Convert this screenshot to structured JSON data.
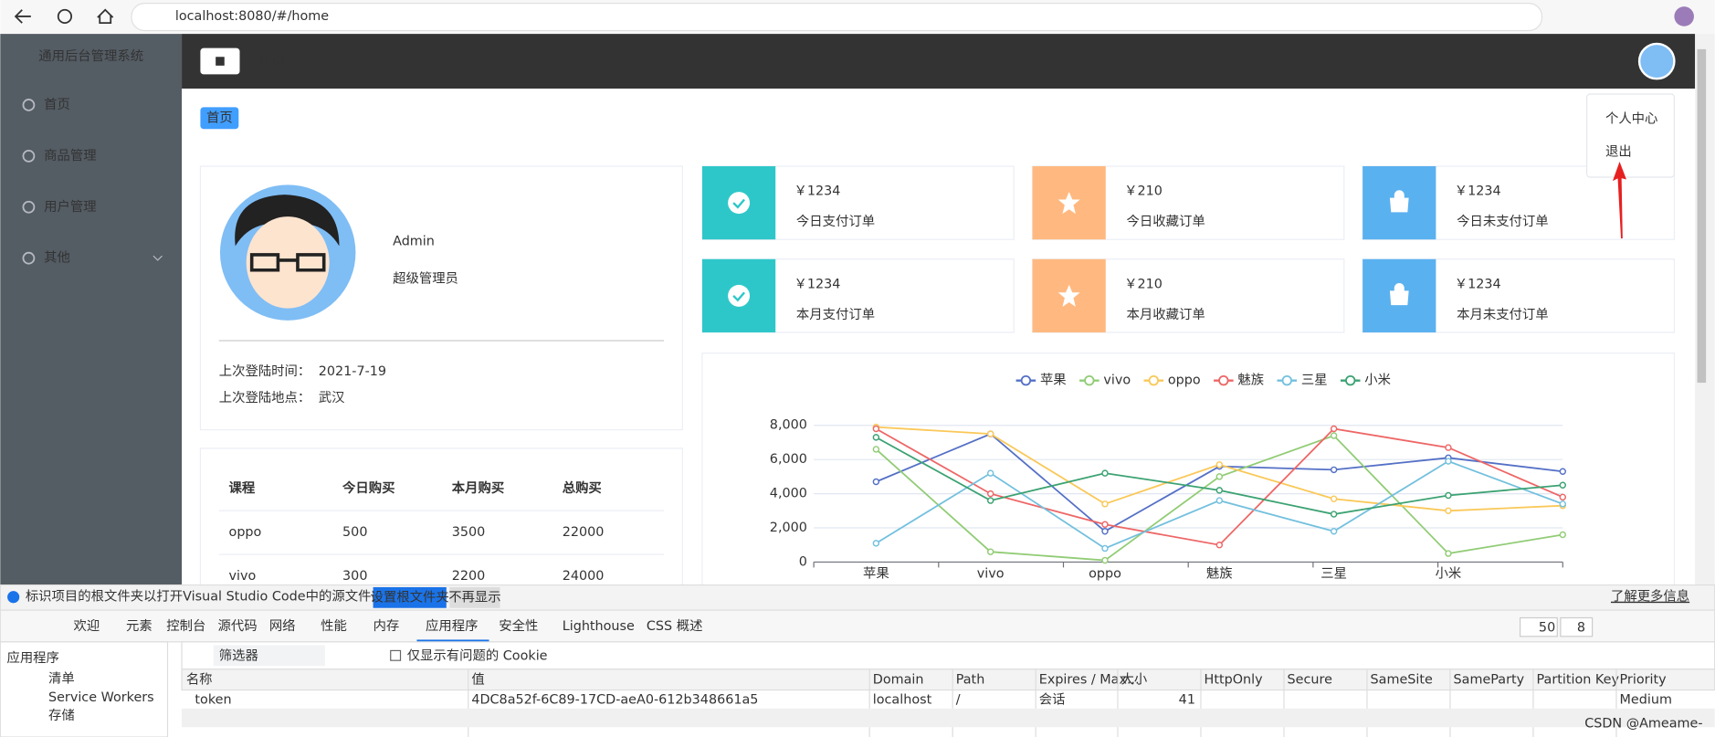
{
  "browser": {
    "url": "localhost:8080/#/home"
  },
  "sidebar": {
    "title": "通用后台管理系统",
    "menu": [
      "首页",
      "商品管理",
      "用户管理",
      "其他"
    ]
  },
  "header": {
    "breadcrumb": "首页"
  },
  "dropdown": [
    "个人中心",
    "退出"
  ],
  "tag": "首页",
  "user": {
    "name": "Admin",
    "role": "超级管理员",
    "info": [
      {
        "label": "上次登陆时间：",
        "value": "2021-7-19"
      },
      {
        "label": "上次登陆地点：",
        "value": "武汉"
      }
    ]
  },
  "table": {
    "headers": [
      "课程",
      "今日购买",
      "本月购买",
      "总购买"
    ],
    "rows": [
      [
        "oppo",
        500,
        3500,
        22000
      ],
      [
        "vivo",
        300,
        2200,
        24000
      ]
    ]
  },
  "stats": [
    {
      "value": "￥1234",
      "label": "今日支付订单",
      "color": "#2ec7c9"
    },
    {
      "value": "￥210",
      "label": "今日收藏订单",
      "color": "#ffb980"
    },
    {
      "value": "￥1234",
      "label": "今日未支付订单",
      "color": "#5ab1ef"
    },
    {
      "value": "￥1234",
      "label": "本月支付订单",
      "color": "#2ec7c9"
    },
    {
      "value": "￥210",
      "label": "本月收藏订单",
      "color": "#ffb980"
    },
    {
      "value": "￥1234",
      "label": "本月未支付订单",
      "color": "#5ab1ef"
    }
  ],
  "chart": {
    "type": "line",
    "categories": [
      "苹果",
      "vivo",
      "oppo",
      "魅族",
      "三星",
      "小米",
      null
    ],
    "series": [
      {
        "name": "苹果",
        "color": "#5470c6",
        "values": [
          4700,
          7500,
          1800,
          5600,
          5400,
          6100,
          5300
        ]
      },
      {
        "name": "vivo",
        "color": "#91cc75",
        "values": [
          6600,
          600,
          100,
          5000,
          7400,
          500,
          1600
        ]
      },
      {
        "name": "oppo",
        "color": "#fac858",
        "values": [
          7900,
          7500,
          3400,
          5700,
          3700,
          3000,
          3300
        ]
      },
      {
        "name": "魅族",
        "color": "#ee6666",
        "values": [
          7800,
          4000,
          2200,
          1000,
          7800,
          6700,
          3800
        ]
      },
      {
        "name": "三星",
        "color": "#73c0de",
        "values": [
          1100,
          5200,
          800,
          3600,
          1800,
          5900,
          3400
        ]
      },
      {
        "name": "小米",
        "color": "#3ba272",
        "values": [
          7300,
          3600,
          5200,
          4200,
          2800,
          3900,
          4500
        ]
      }
    ],
    "ylim": [
      0,
      8000
    ],
    "yticks": [
      0,
      {
        "value": 2000,
        "label": "2,000"
      },
      {
        "value": 4000,
        "label": "4,000"
      },
      {
        "value": 6000,
        "label": "6,000"
      },
      {
        "value": 8000,
        "label": "8,000"
      }
    ],
    "grid": true
  },
  "devtools": {
    "notice": "标识项目的根文件夹以打开Visual Studio Code中的源文件并同步更改。",
    "buttons": [
      "设置根文件夹",
      "不再显示"
    ],
    "link": "了解更多信息",
    "tabs": [
      "欢迎",
      "元素",
      "控制台",
      "源代码",
      "网络",
      "性能",
      "内存",
      "应用程序",
      "安全性",
      "Lighthouse",
      "CSS 概述"
    ],
    "warnings": 50,
    "messages": 8,
    "filter": "筛选器",
    "checkbox": "仅显示有问题的 Cookie",
    "side_title": "应用程序",
    "side_items": [
      "清单",
      "Service Workers",
      "存储"
    ],
    "columns": [
      "名称",
      "值",
      "Domain",
      "Path",
      "Expires / Max...",
      "大小",
      "HttpOnly",
      "Secure",
      "SameSite",
      "SameParty",
      "Partition Key",
      "Priority"
    ],
    "cookie": {
      "name": "token",
      "value": "4DC8a52f-6C89-17CD-aeA0-612b348661a5",
      "domain": "localhost",
      "path": "/",
      "expires": "会话",
      "size": 41,
      "priority": "Medium"
    },
    "watermark": "CSDN @Ameame-"
  }
}
